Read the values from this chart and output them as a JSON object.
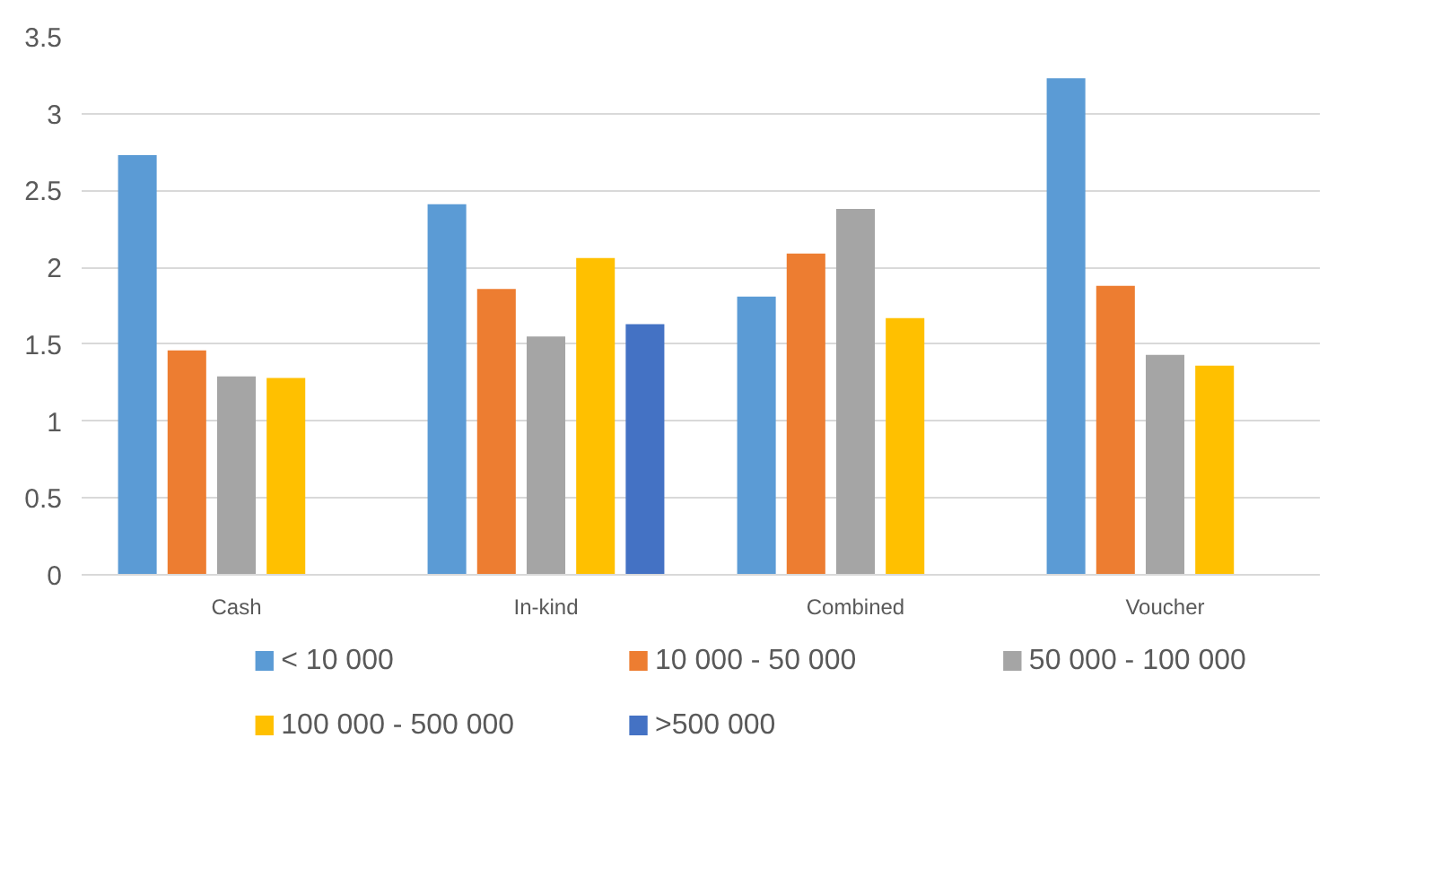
{
  "chart_data": {
    "type": "bar",
    "categories": [
      "Cash",
      "In-kind",
      "Combined",
      "Voucher"
    ],
    "series": [
      {
        "name": "< 10 000",
        "color": "#5b9bd5",
        "values": [
          2.73,
          2.41,
          1.81,
          3.23
        ]
      },
      {
        "name": "10 000 - 50 000",
        "color": "#ed7d31",
        "values": [
          1.46,
          1.86,
          2.09,
          1.88
        ]
      },
      {
        "name": "50 000 - 100 000",
        "color": "#a5a5a5",
        "values": [
          1.29,
          1.55,
          2.38,
          1.43
        ]
      },
      {
        "name": "100 000 - 500 000",
        "color": "#ffc000",
        "values": [
          1.28,
          2.06,
          1.67,
          1.36
        ]
      },
      {
        "name": ">500 000",
        "color": "#4472c4",
        "values": [
          null,
          1.63,
          null,
          null
        ]
      }
    ],
    "ylim": [
      0,
      3.5
    ],
    "yticks": [
      0,
      0.5,
      1,
      1.5,
      2,
      2.5,
      3,
      3.5
    ],
    "grid": "y",
    "legend": "bottom"
  }
}
